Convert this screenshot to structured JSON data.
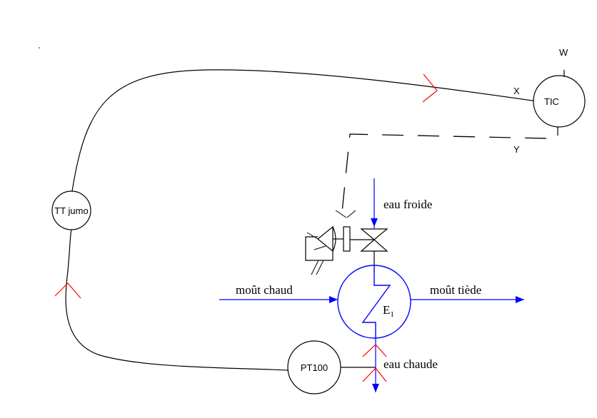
{
  "instruments": {
    "tic": "TIC",
    "tt": "TT jumo",
    "pt100": "PT100"
  },
  "signals": {
    "w": "W",
    "x": "X",
    "y": "Y"
  },
  "exchanger": {
    "label": "E",
    "subscript": "1"
  },
  "streams": {
    "cold_water": "eau froide",
    "hot_wort": "moût chaud",
    "warm_wort": "moût tiède",
    "hot_water": "eau chaude"
  },
  "colors": {
    "process_line": "#0000ff",
    "signal_arrow": "#ff0000",
    "instrument_line": "#000000"
  }
}
